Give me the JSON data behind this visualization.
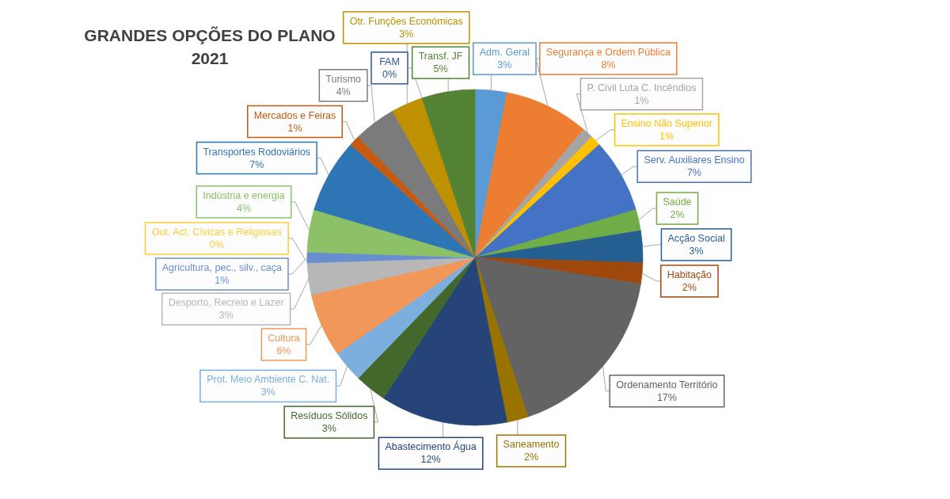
{
  "chart_data": {
    "type": "pie",
    "title": "GRANDES OPÇÕES DO PLANO",
    "subtitle": "2021",
    "categories": [
      "Adm. Geral",
      "Segurança e Ordem Pública",
      "P. Civil Luta C. Incêndios",
      "Ensino Não Superior",
      "Serv. Auxiliares Ensino",
      "Saúde",
      "Acção Social",
      "Habitação",
      "Ordenamento Território",
      "Saneamento",
      "Abastecimento Água",
      "Resíduos Sólidos",
      "Prot. Meio Ambiente C. Nat.",
      "Cultura",
      "Desporto, Recreio e Lazer",
      "Out. Act. Cívicas e Religiosas",
      "Agricultura, pec., silv., caça",
      "Indústria e energia",
      "Transportes Rodoviários",
      "Mercados e Feiras",
      "Turismo",
      "Otr. Funções Económicas",
      "FAM",
      "Transf. JF"
    ],
    "values": [
      3,
      8,
      1,
      1,
      7,
      2,
      3,
      2,
      17,
      2,
      12,
      3,
      3,
      6,
      3,
      0,
      1,
      4,
      7,
      1,
      4,
      3,
      0,
      5
    ],
    "value_labels": [
      "3%",
      "8%",
      "1%",
      "1%",
      "7%",
      "2%",
      "3%",
      "2%",
      "17%",
      "2%",
      "12%",
      "3%",
      "3%",
      "6%",
      "3%",
      "0%",
      "1%",
      "4%",
      "7%",
      "1%",
      "4%",
      "3%",
      "0%",
      "5%"
    ],
    "colors": [
      "#5b9bd5",
      "#ed7d31",
      "#a5a5a5",
      "#ffc000",
      "#4472c4",
      "#70ad47",
      "#255e91",
      "#9e480e",
      "#636363",
      "#997300",
      "#264478",
      "#43682b",
      "#7cafdd",
      "#f1975a",
      "#b7b7b7",
      "#ffcd33",
      "#698ed0",
      "#8cc168",
      "#2e75b6",
      "#c55a11",
      "#7b7b7b",
      "#bf9000",
      "#2f5597",
      "#548235"
    ]
  }
}
